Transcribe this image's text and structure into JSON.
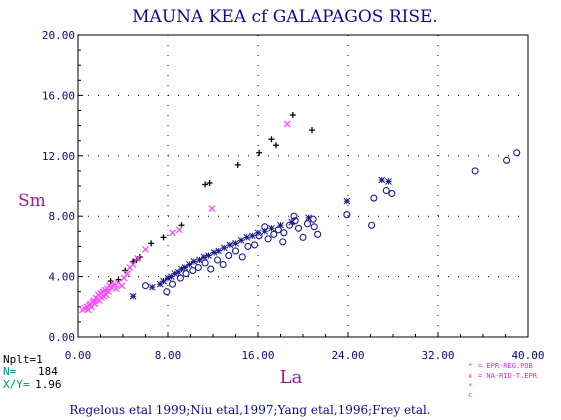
{
  "chart_data": {
    "type": "scatter",
    "title": "MAUNA KEA cf GALAPAGOS RISE.",
    "xlabel": "La",
    "ylabel": "Sm",
    "xlim": [
      0,
      40
    ],
    "ylim": [
      0,
      20
    ],
    "x_ticks": [
      "0.00",
      "8.00",
      "16.00",
      "24.00",
      "32.00",
      "40.00"
    ],
    "y_ticks": [
      "0.00",
      "4.00",
      "8.00",
      "12.00",
      "16.00",
      "20.00"
    ],
    "grid": true,
    "stats": {
      "nplt": "Nplt=1",
      "n_label": "N=",
      "n_value": "184",
      "xy_label": "X/Y=",
      "xy_value": "1.96"
    },
    "legend": [
      {
        "symbol": "*",
        "label": "EPR-REG.POB",
        "color": "#cc33cc"
      },
      {
        "symbol": "x",
        "label": "NA-RID-T.EPR",
        "color": "#cc33cc"
      },
      {
        "symbol": "*",
        "label": "",
        "color": "#cc33cc"
      },
      {
        "symbol": "c",
        "label": "",
        "color": "#cc33cc"
      }
    ],
    "footer": "Regelous etal 1999;Niu etal,1997;Yang etal,1996;Frey etal.",
    "colors": {
      "title": "#0a0a8c",
      "axis_label": "#9a1a9a",
      "navy": "#1a1a8c",
      "magenta": "#ff44ff",
      "black": "#000000",
      "cyan": "#008b8b"
    },
    "series": [
      {
        "marker": "plus",
        "color": "#000000",
        "points": [
          [
            2.9,
            3.7
          ],
          [
            3.6,
            3.8
          ],
          [
            4.2,
            4.4
          ],
          [
            4.9,
            5.0
          ],
          [
            5.2,
            5.1
          ],
          [
            5.5,
            5.3
          ],
          [
            6.5,
            6.2
          ],
          [
            7.6,
            6.6
          ],
          [
            9.2,
            7.4
          ],
          [
            11.3,
            10.1
          ],
          [
            11.7,
            10.2
          ],
          [
            14.2,
            11.4
          ],
          [
            16.1,
            12.2
          ],
          [
            17.2,
            13.1
          ],
          [
            17.6,
            12.7
          ],
          [
            19.1,
            14.7
          ],
          [
            20.8,
            13.7
          ]
        ]
      },
      {
        "marker": "x",
        "color": "#ff44ff",
        "points": [
          [
            0.4,
            1.8
          ],
          [
            0.6,
            1.9
          ],
          [
            0.8,
            2.0
          ],
          [
            0.9,
            1.8
          ],
          [
            1.0,
            2.1
          ],
          [
            1.1,
            2.2
          ],
          [
            1.2,
            2.0
          ],
          [
            1.3,
            2.3
          ],
          [
            1.4,
            2.4
          ],
          [
            1.5,
            2.2
          ],
          [
            1.6,
            2.6
          ],
          [
            1.7,
            2.5
          ],
          [
            1.8,
            2.8
          ],
          [
            1.9,
            2.4
          ],
          [
            2.0,
            2.9
          ],
          [
            2.1,
            2.6
          ],
          [
            2.2,
            3.0
          ],
          [
            2.3,
            2.7
          ],
          [
            2.4,
            3.1
          ],
          [
            2.5,
            2.8
          ],
          [
            2.6,
            3.2
          ],
          [
            2.7,
            3.0
          ],
          [
            2.8,
            3.4
          ],
          [
            3.0,
            3.3
          ],
          [
            3.2,
            3.5
          ],
          [
            3.4,
            3.2
          ],
          [
            3.6,
            3.6
          ],
          [
            3.9,
            3.4
          ],
          [
            4.1,
            3.9
          ],
          [
            4.4,
            4.2
          ],
          [
            4.6,
            4.6
          ],
          [
            4.9,
            4.8
          ],
          [
            5.3,
            5.2
          ],
          [
            6.0,
            5.8
          ],
          [
            8.4,
            6.9
          ],
          [
            9.0,
            7.1
          ],
          [
            11.9,
            8.5
          ],
          [
            18.6,
            14.1
          ]
        ]
      },
      {
        "marker": "star",
        "color": "#1a1a8c",
        "points": [
          [
            4.9,
            2.7
          ],
          [
            6.6,
            3.3
          ],
          [
            7.3,
            3.5
          ],
          [
            7.6,
            3.7
          ],
          [
            8.0,
            3.9
          ],
          [
            8.3,
            4.0
          ],
          [
            8.6,
            4.2
          ],
          [
            8.9,
            4.3
          ],
          [
            9.2,
            4.5
          ],
          [
            9.5,
            4.6
          ],
          [
            9.9,
            4.8
          ],
          [
            10.3,
            5.0
          ],
          [
            10.8,
            5.1
          ],
          [
            11.2,
            5.3
          ],
          [
            11.6,
            5.4
          ],
          [
            12.1,
            5.6
          ],
          [
            12.5,
            5.7
          ],
          [
            13.0,
            5.9
          ],
          [
            13.5,
            6.1
          ],
          [
            14.0,
            6.2
          ],
          [
            14.5,
            6.4
          ],
          [
            15.0,
            6.6
          ],
          [
            15.5,
            6.7
          ],
          [
            16.0,
            6.9
          ],
          [
            16.6,
            7.0
          ],
          [
            17.2,
            7.2
          ],
          [
            18.0,
            7.4
          ],
          [
            19.0,
            7.6
          ],
          [
            20.5,
            7.9
          ],
          [
            23.9,
            9.0
          ],
          [
            27.0,
            10.4
          ],
          [
            27.6,
            10.3
          ]
        ]
      },
      {
        "marker": "circle",
        "color": "#1a1a8c",
        "points": [
          [
            6.0,
            3.4
          ],
          [
            7.9,
            3.0
          ],
          [
            8.4,
            3.5
          ],
          [
            9.1,
            3.9
          ],
          [
            9.6,
            4.2
          ],
          [
            10.2,
            4.4
          ],
          [
            10.7,
            4.6
          ],
          [
            11.3,
            4.9
          ],
          [
            11.8,
            4.5
          ],
          [
            12.4,
            5.1
          ],
          [
            12.9,
            4.8
          ],
          [
            13.4,
            5.4
          ],
          [
            14.0,
            5.7
          ],
          [
            14.6,
            5.3
          ],
          [
            15.1,
            6.0
          ],
          [
            15.7,
            6.1
          ],
          [
            16.1,
            6.7
          ],
          [
            16.6,
            7.3
          ],
          [
            16.9,
            6.5
          ],
          [
            17.4,
            6.8
          ],
          [
            17.8,
            7.1
          ],
          [
            18.3,
            6.9
          ],
          [
            18.8,
            7.4
          ],
          [
            19.3,
            7.7
          ],
          [
            19.6,
            7.2
          ],
          [
            20.0,
            6.6
          ],
          [
            20.4,
            7.5
          ],
          [
            20.9,
            7.8
          ],
          [
            21.3,
            6.8
          ],
          [
            21.0,
            7.3
          ],
          [
            19.2,
            8.0
          ],
          [
            18.2,
            6.3
          ],
          [
            23.9,
            8.1
          ],
          [
            26.1,
            7.4
          ],
          [
            26.3,
            9.2
          ],
          [
            27.4,
            9.7
          ],
          [
            27.9,
            9.5
          ],
          [
            35.3,
            11.0
          ],
          [
            38.1,
            11.7
          ],
          [
            39.0,
            12.2
          ]
        ]
      }
    ]
  }
}
